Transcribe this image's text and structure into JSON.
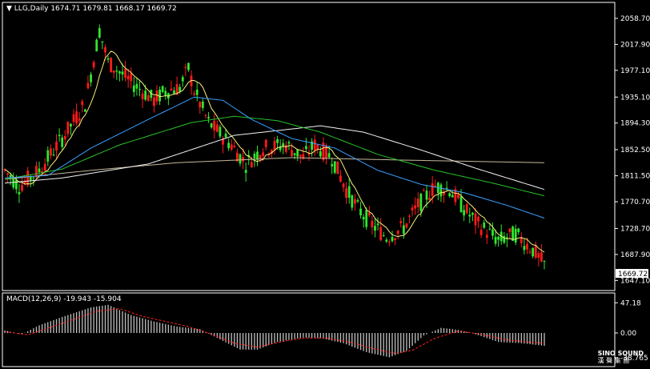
{
  "header": {
    "symbol": "LLG,Daily",
    "ohlc": "1674.71 1679.81 1668.17 1669.72"
  },
  "macd_header": {
    "label": "MACD(12,26,9)",
    "values": "-19.943 -15.904"
  },
  "colors": {
    "background": "#000000",
    "grid": "#ffffff",
    "bull": "#ff1a1a",
    "bear": "#2ee62e",
    "ma_short": "#f5f07a",
    "ma_mid": "#3aa0ff",
    "ma_green": "#27c227",
    "ma_white": "#f2f2f2",
    "ma_long": "#c7b89a",
    "macd_hist": "#c0c0c0",
    "macd_signal": "#ff2020"
  },
  "logo": {
    "name": "SINO SOUND",
    "sub": "漢 聲 集 團"
  },
  "chart_data": {
    "type": "candlestick",
    "symbol": "LLG",
    "timeframe": "Daily",
    "current_price": "1669.72",
    "price_axis": {
      "range": [
        1640,
        2075
      ],
      "ticks": [
        "2058.70",
        "2017.90",
        "1977.10",
        "1935.10",
        "1894.30",
        "1852.50",
        "1811.50",
        "1770.70",
        "1728.70",
        "1687.90",
        "1647.10"
      ]
    },
    "macd_axis": {
      "range": [
        -45,
        55
      ],
      "ticks": [
        "47.18",
        "0.00",
        "-38.765"
      ]
    },
    "price_path": [
      [
        0,
        1820
      ],
      [
        5,
        1795
      ],
      [
        12,
        1820
      ],
      [
        20,
        1870
      ],
      [
        28,
        1925
      ],
      [
        33,
        2040
      ],
      [
        36,
        1990
      ],
      [
        45,
        1955
      ],
      [
        52,
        1930
      ],
      [
        56,
        1945
      ],
      [
        61,
        1950
      ],
      [
        64,
        1980
      ],
      [
        66,
        1945
      ],
      [
        71,
        1895
      ],
      [
        79,
        1860
      ],
      [
        84,
        1830
      ],
      [
        90,
        1855
      ],
      [
        98,
        1860
      ],
      [
        104,
        1840
      ],
      [
        108,
        1860
      ],
      [
        114,
        1840
      ],
      [
        119,
        1790
      ],
      [
        123,
        1760
      ],
      [
        128,
        1735
      ],
      [
        133,
        1715
      ],
      [
        139,
        1730
      ],
      [
        144,
        1765
      ],
      [
        150,
        1795
      ],
      [
        155,
        1790
      ],
      [
        160,
        1760
      ],
      [
        165,
        1735
      ],
      [
        172,
        1710
      ],
      [
        178,
        1720
      ],
      [
        184,
        1695
      ],
      [
        188,
        1672
      ]
    ],
    "moving_averages": [
      {
        "color": "ma_long",
        "points": [
          [
            0,
            1806
          ],
          [
            30,
            1820
          ],
          [
            60,
            1832
          ],
          [
            100,
            1840
          ],
          [
            140,
            1836
          ],
          [
            188,
            1832
          ]
        ]
      },
      {
        "color": "ma_white",
        "points": [
          [
            0,
            1800
          ],
          [
            20,
            1808
          ],
          [
            50,
            1830
          ],
          [
            80,
            1875
          ],
          [
            110,
            1890
          ],
          [
            125,
            1880
          ],
          [
            145,
            1852
          ],
          [
            165,
            1822
          ],
          [
            188,
            1790
          ]
        ]
      },
      {
        "color": "ma_green",
        "points": [
          [
            0,
            1806
          ],
          [
            20,
            1822
          ],
          [
            40,
            1860
          ],
          [
            65,
            1895
          ],
          [
            80,
            1905
          ],
          [
            95,
            1898
          ],
          [
            110,
            1880
          ],
          [
            130,
            1845
          ],
          [
            150,
            1820
          ],
          [
            170,
            1800
          ],
          [
            188,
            1780
          ]
        ]
      },
      {
        "color": "ma_mid",
        "points": [
          [
            0,
            1808
          ],
          [
            15,
            1812
          ],
          [
            30,
            1855
          ],
          [
            50,
            1900
          ],
          [
            66,
            1935
          ],
          [
            76,
            1930
          ],
          [
            86,
            1900
          ],
          [
            100,
            1870
          ],
          [
            115,
            1855
          ],
          [
            130,
            1820
          ],
          [
            145,
            1798
          ],
          [
            160,
            1785
          ],
          [
            175,
            1765
          ],
          [
            188,
            1745
          ]
        ]
      }
    ],
    "macd": {
      "fast": 12,
      "slow": 26,
      "signal": 9,
      "histogram_path": [
        [
          0,
          4
        ],
        [
          6,
          -2
        ],
        [
          12,
          12
        ],
        [
          20,
          25
        ],
        [
          30,
          40
        ],
        [
          36,
          44
        ],
        [
          44,
          28
        ],
        [
          52,
          18
        ],
        [
          60,
          10
        ],
        [
          68,
          6
        ],
        [
          75,
          -10
        ],
        [
          82,
          -26
        ],
        [
          88,
          -26
        ],
        [
          95,
          -14
        ],
        [
          104,
          -7
        ],
        [
          110,
          -8
        ],
        [
          118,
          -16
        ],
        [
          126,
          -30
        ],
        [
          134,
          -38
        ],
        [
          140,
          -28
        ],
        [
          146,
          -4
        ],
        [
          152,
          8
        ],
        [
          158,
          5
        ],
        [
          164,
          -2
        ],
        [
          172,
          -14
        ],
        [
          180,
          -16
        ],
        [
          188,
          -20
        ]
      ],
      "signal_path": [
        [
          0,
          2
        ],
        [
          8,
          -3
        ],
        [
          14,
          6
        ],
        [
          22,
          18
        ],
        [
          32,
          34
        ],
        [
          40,
          38
        ],
        [
          48,
          26
        ],
        [
          56,
          18
        ],
        [
          64,
          10
        ],
        [
          72,
          -2
        ],
        [
          80,
          -16
        ],
        [
          88,
          -22
        ],
        [
          96,
          -14
        ],
        [
          104,
          -8
        ],
        [
          112,
          -8
        ],
        [
          120,
          -14
        ],
        [
          128,
          -24
        ],
        [
          136,
          -32
        ],
        [
          142,
          -27
        ],
        [
          150,
          -8
        ],
        [
          158,
          3
        ],
        [
          166,
          -2
        ],
        [
          174,
          -10
        ],
        [
          182,
          -14
        ],
        [
          188,
          -16
        ]
      ]
    }
  }
}
